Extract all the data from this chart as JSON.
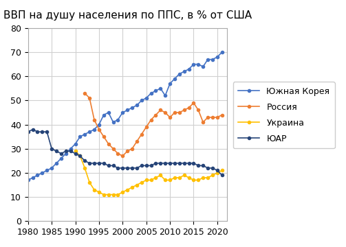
{
  "title": "ВВП на душу населения по ППС, в % от США",
  "xlim": [
    1980,
    2022
  ],
  "ylim": [
    0,
    80
  ],
  "yticks": [
    0,
    10,
    20,
    30,
    40,
    50,
    60,
    70,
    80
  ],
  "xticks": [
    1980,
    1985,
    1990,
    1995,
    2000,
    2005,
    2010,
    2015,
    2020
  ],
  "series": {
    "Южная Корея": {
      "color": "#4472C4",
      "years": [
        1980,
        1981,
        1982,
        1983,
        1984,
        1985,
        1986,
        1987,
        1988,
        1989,
        1990,
        1991,
        1992,
        1993,
        1994,
        1995,
        1996,
        1997,
        1998,
        1999,
        2000,
        2001,
        2002,
        2003,
        2004,
        2005,
        2006,
        2007,
        2008,
        2009,
        2010,
        2011,
        2012,
        2013,
        2014,
        2015,
        2016,
        2017,
        2018,
        2019,
        2020,
        2021
      ],
      "values": [
        17,
        18,
        19,
        20,
        21,
        22,
        24,
        26,
        28,
        30,
        32,
        35,
        36,
        37,
        38,
        40,
        44,
        45,
        41,
        42,
        45,
        46,
        47,
        48,
        50,
        51,
        53,
        54,
        55,
        52,
        57,
        59,
        61,
        62,
        63,
        65,
        65,
        64,
        67,
        67,
        68,
        70
      ]
    },
    "Россия": {
      "color": "#ED7D31",
      "years": [
        1992,
        1993,
        1994,
        1995,
        1996,
        1997,
        1998,
        1999,
        2000,
        2001,
        2002,
        2003,
        2004,
        2005,
        2006,
        2007,
        2008,
        2009,
        2010,
        2011,
        2012,
        2013,
        2014,
        2015,
        2016,
        2017,
        2018,
        2019,
        2020,
        2021
      ],
      "values": [
        53,
        51,
        42,
        38,
        35,
        32,
        30,
        28,
        27,
        29,
        30,
        33,
        36,
        39,
        42,
        44,
        46,
        45,
        43,
        45,
        45,
        46,
        47,
        49,
        46,
        41,
        43,
        43,
        43,
        44
      ]
    },
    "Украина": {
      "color": "#FFC000",
      "years": [
        1990,
        1991,
        1992,
        1993,
        1994,
        1995,
        1996,
        1997,
        1998,
        1999,
        2000,
        2001,
        2002,
        2003,
        2004,
        2005,
        2006,
        2007,
        2008,
        2009,
        2010,
        2011,
        2012,
        2013,
        2014,
        2015,
        2016,
        2017,
        2018,
        2019,
        2020,
        2021
      ],
      "values": [
        29,
        27,
        22,
        16,
        13,
        12,
        11,
        11,
        11,
        11,
        12,
        13,
        14,
        15,
        16,
        17,
        17,
        18,
        19,
        17,
        17,
        18,
        18,
        19,
        18,
        17,
        17,
        18,
        18,
        19,
        20,
        21
      ]
    },
    "ЮАР": {
      "color": "#264478",
      "years": [
        1980,
        1981,
        1982,
        1983,
        1984,
        1985,
        1986,
        1987,
        1988,
        1989,
        1990,
        1991,
        1992,
        1993,
        1994,
        1995,
        1996,
        1997,
        1998,
        1999,
        2000,
        2001,
        2002,
        2003,
        2004,
        2005,
        2006,
        2007,
        2008,
        2009,
        2010,
        2011,
        2012,
        2013,
        2014,
        2015,
        2016,
        2017,
        2018,
        2019,
        2020,
        2021
      ],
      "values": [
        37,
        38,
        37,
        37,
        37,
        30,
        29,
        28,
        29,
        29,
        28,
        27,
        25,
        24,
        24,
        24,
        24,
        23,
        23,
        22,
        22,
        22,
        22,
        22,
        23,
        23,
        23,
        24,
        24,
        24,
        24,
        24,
        24,
        24,
        24,
        24,
        23,
        23,
        22,
        22,
        21,
        19
      ]
    }
  },
  "background_color": "#ffffff",
  "grid_color": "#d0d0d0"
}
